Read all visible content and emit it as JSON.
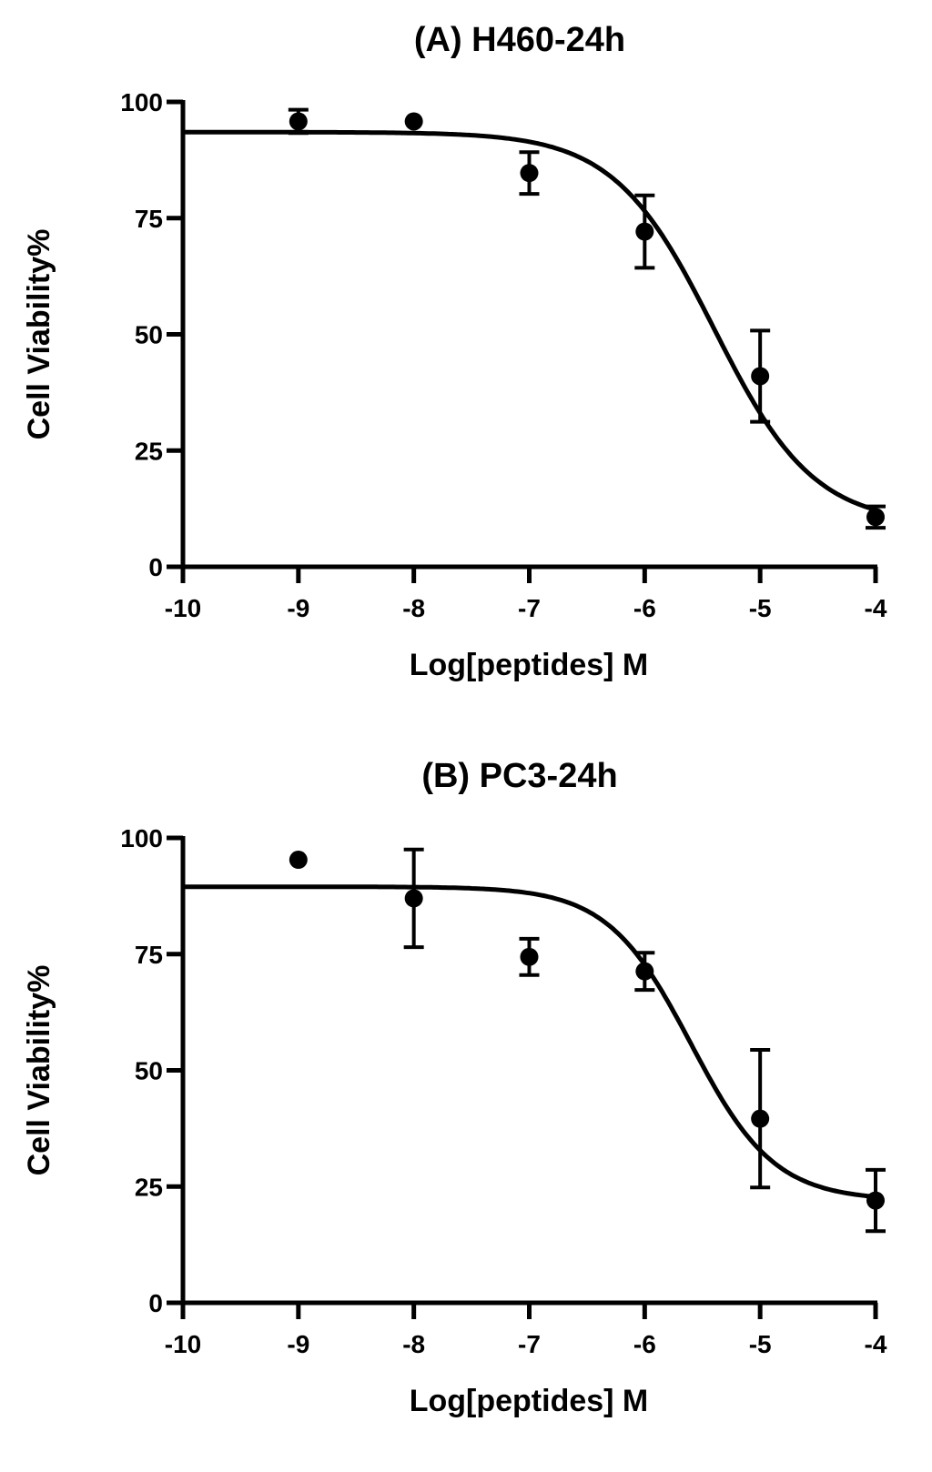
{
  "chart_data": [
    {
      "type": "scatter",
      "title": "(A) H460-24h",
      "xlabel": "Log[peptides] M",
      "ylabel": "Cell Viability%",
      "xlim": [
        -10,
        -4
      ],
      "ylim": [
        0,
        100
      ],
      "x_ticks": [
        -10,
        -9,
        -8,
        -7,
        -6,
        -5,
        -4
      ],
      "y_ticks": [
        0,
        25,
        50,
        75,
        100
      ],
      "x_tick_labels": [
        "-10",
        "-9",
        "-8",
        "-7",
        "-6",
        "-5",
        "-4"
      ],
      "y_tick_labels": [
        "0",
        "25",
        "50",
        "75",
        "100"
      ],
      "grid": false,
      "series": [
        {
          "x": [
            -9,
            -8,
            -7,
            -6,
            -5,
            -4
          ],
          "y": [
            95.8,
            95.8,
            84.7,
            72.1,
            41.0,
            10.7
          ],
          "error": [
            2.5,
            0,
            4.5,
            7.8,
            9.8,
            2.3
          ]
        }
      ],
      "fit_curve": {
        "top": 93.5,
        "bottom": 9,
        "log_ic50": -5.4,
        "hill_slope": -1
      }
    },
    {
      "type": "scatter",
      "title": "(B) PC3-24h",
      "xlabel": "Log[peptides] M",
      "ylabel": "Cell Viability%",
      "xlim": [
        -10,
        -4
      ],
      "ylim": [
        0,
        100
      ],
      "x_ticks": [
        -10,
        -9,
        -8,
        -7,
        -6,
        -5,
        -4
      ],
      "y_ticks": [
        0,
        25,
        50,
        75,
        100
      ],
      "x_tick_labels": [
        "-10",
        "-9",
        "-8",
        "-7",
        "-6",
        "-5",
        "-4"
      ],
      "y_tick_labels": [
        "0",
        "25",
        "50",
        "75",
        "100"
      ],
      "grid": false,
      "series": [
        {
          "x": [
            -9,
            -8,
            -7,
            -6,
            -5,
            -4
          ],
          "y": [
            95.3,
            87.0,
            74.4,
            71.3,
            39.6,
            22.0
          ],
          "error": [
            0,
            10.5,
            3.9,
            4.0,
            14.8,
            6.6
          ]
        }
      ],
      "fit_curve": {
        "top": 89.5,
        "bottom": 22,
        "log_ic50": -5.6,
        "hill_slope": -1.2
      }
    }
  ]
}
